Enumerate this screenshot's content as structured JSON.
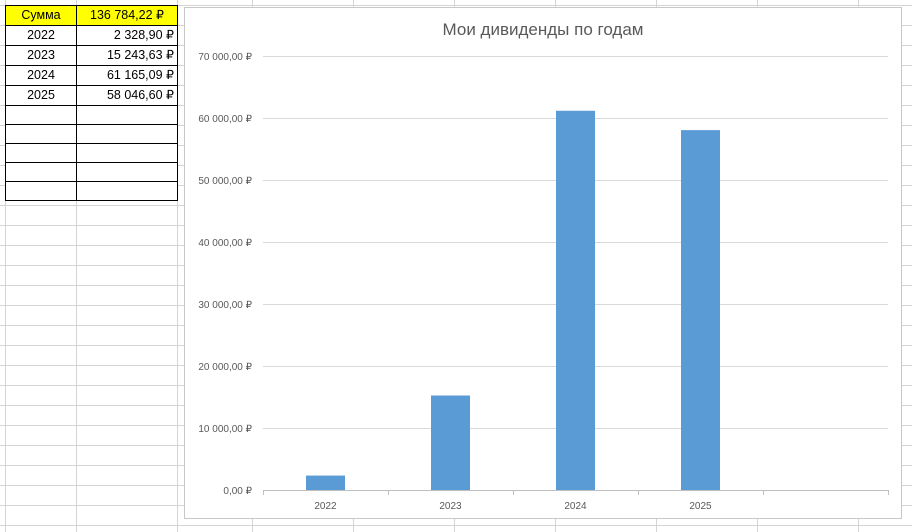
{
  "table": {
    "total": {
      "label": "Сумма",
      "value": "136 784,22 ₽"
    },
    "rows": [
      {
        "year": "2022",
        "amount": "2 328,90 ₽"
      },
      {
        "year": "2023",
        "amount": "15 243,63 ₽"
      },
      {
        "year": "2024",
        "amount": "61 165,09 ₽"
      },
      {
        "year": "2025",
        "amount": "58 046,60 ₽"
      }
    ],
    "empty_rows": 5,
    "highlight_color": "#ffff00"
  },
  "chart_data": {
    "type": "bar",
    "title": "Мои дивиденды по годам",
    "categories": [
      "2022",
      "2023",
      "2024",
      "2025",
      ""
    ],
    "values": [
      2328.9,
      15243.63,
      61165.09,
      58046.6,
      null
    ],
    "ylim": [
      0,
      70000
    ],
    "yticks": [
      0,
      10000,
      20000,
      30000,
      40000,
      50000,
      60000,
      70000
    ],
    "ytick_labels": [
      "0,00 ₽",
      "10 000,00 ₽",
      "20 000,00 ₽",
      "30 000,00 ₽",
      "40 000,00 ₽",
      "50 000,00 ₽",
      "60 000,00 ₽",
      "70 000,00 ₽"
    ],
    "grid": true,
    "legend": "none",
    "bar_color": "#5b9bd5"
  }
}
